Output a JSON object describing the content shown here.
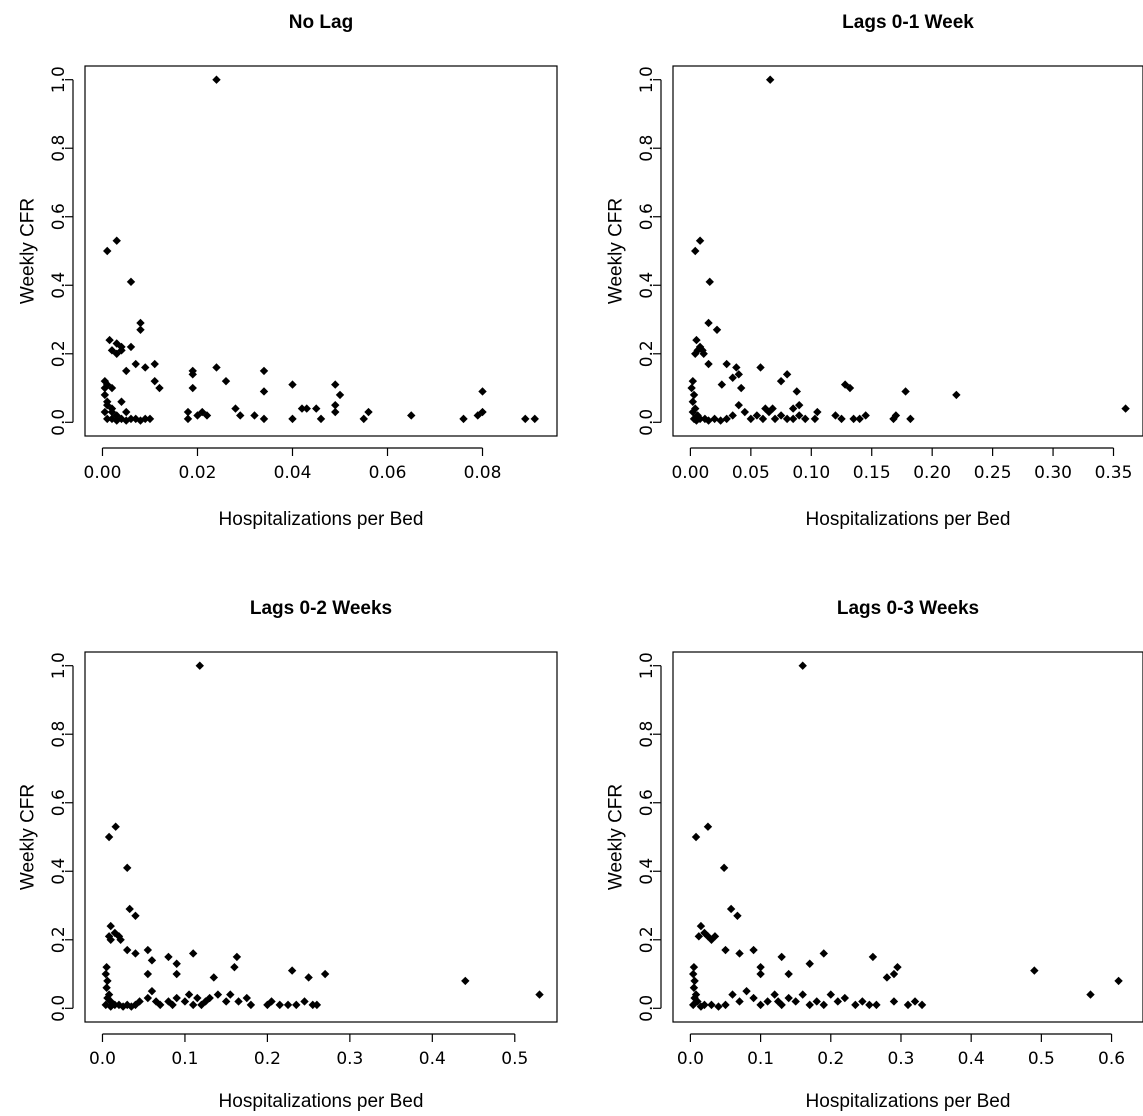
{
  "chart_data": [
    {
      "type": "scatter",
      "title": "No Lag",
      "xlabel": "Hospitalizations per Bed",
      "ylabel": "Weekly CFR",
      "xlim": [
        0,
        0.092
      ],
      "ylim": [
        0,
        1.0
      ],
      "xticks": [
        "0.00",
        "0.02",
        "0.04",
        "0.06",
        "0.08"
      ],
      "xtick_values": [
        0,
        0.02,
        0.04,
        0.06,
        0.08
      ],
      "yticks": [
        "0.0",
        "0.2",
        "0.4",
        "0.6",
        "0.8",
        "1.0"
      ],
      "ytick_values": [
        0,
        0.2,
        0.4,
        0.6,
        0.8,
        1.0
      ],
      "grid": false,
      "points": [
        [
          0.024,
          1.0
        ],
        [
          0.001,
          0.5
        ],
        [
          0.003,
          0.53
        ],
        [
          0.006,
          0.41
        ],
        [
          0.008,
          0.27
        ],
        [
          0.008,
          0.29
        ],
        [
          0.0015,
          0.24
        ],
        [
          0.003,
          0.23
        ],
        [
          0.004,
          0.22
        ],
        [
          0.002,
          0.21
        ],
        [
          0.003,
          0.2
        ],
        [
          0.004,
          0.21
        ],
        [
          0.006,
          0.22
        ],
        [
          0.007,
          0.17
        ],
        [
          0.009,
          0.16
        ],
        [
          0.011,
          0.17
        ],
        [
          0.005,
          0.15
        ],
        [
          0.011,
          0.12
        ],
        [
          0.012,
          0.1
        ],
        [
          0.0005,
          0.12
        ],
        [
          0.001,
          0.11
        ],
        [
          0.0005,
          0.1
        ],
        [
          0.002,
          0.1
        ],
        [
          0.0005,
          0.08
        ],
        [
          0.001,
          0.06
        ],
        [
          0.001,
          0.05
        ],
        [
          0.002,
          0.04
        ],
        [
          0.0005,
          0.03
        ],
        [
          0.002,
          0.03
        ],
        [
          0.003,
          0.02
        ],
        [
          0.001,
          0.01
        ],
        [
          0.002,
          0.01
        ],
        [
          0.003,
          0.005
        ],
        [
          0.004,
          0.01
        ],
        [
          0.005,
          0.005
        ],
        [
          0.006,
          0.01
        ],
        [
          0.007,
          0.01
        ],
        [
          0.008,
          0.005
        ],
        [
          0.009,
          0.01
        ],
        [
          0.01,
          0.01
        ],
        [
          0.004,
          0.06
        ],
        [
          0.005,
          0.03
        ],
        [
          0.019,
          0.14
        ],
        [
          0.019,
          0.15
        ],
        [
          0.019,
          0.1
        ],
        [
          0.018,
          0.03
        ],
        [
          0.018,
          0.01
        ],
        [
          0.02,
          0.02
        ],
        [
          0.021,
          0.03
        ],
        [
          0.022,
          0.02
        ],
        [
          0.024,
          0.16
        ],
        [
          0.026,
          0.12
        ],
        [
          0.028,
          0.04
        ],
        [
          0.029,
          0.02
        ],
        [
          0.032,
          0.02
        ],
        [
          0.034,
          0.15
        ],
        [
          0.034,
          0.09
        ],
        [
          0.034,
          0.01
        ],
        [
          0.04,
          0.11
        ],
        [
          0.04,
          0.01
        ],
        [
          0.042,
          0.04
        ],
        [
          0.043,
          0.04
        ],
        [
          0.045,
          0.04
        ],
        [
          0.046,
          0.01
        ],
        [
          0.049,
          0.11
        ],
        [
          0.049,
          0.05
        ],
        [
          0.05,
          0.08
        ],
        [
          0.049,
          0.03
        ],
        [
          0.055,
          0.01
        ],
        [
          0.056,
          0.03
        ],
        [
          0.065,
          0.02
        ],
        [
          0.076,
          0.01
        ],
        [
          0.08,
          0.09
        ],
        [
          0.08,
          0.03
        ],
        [
          0.079,
          0.02
        ],
        [
          0.089,
          0.01
        ],
        [
          0.091,
          0.01
        ]
      ]
    },
    {
      "type": "scatter",
      "title": "Lags 0-1 Week",
      "xlabel": "Hospitalizations per Bed",
      "ylabel": "Weekly CFR",
      "xlim": [
        0,
        0.36
      ],
      "ylim": [
        0,
        1.0
      ],
      "xticks": [
        "0.00",
        "0.05",
        "0.10",
        "0.15",
        "0.20",
        "0.25",
        "0.30",
        "0.35"
      ],
      "xtick_values": [
        0,
        0.05,
        0.1,
        0.15,
        0.2,
        0.25,
        0.3,
        0.35
      ],
      "yticks": [
        "0.0",
        "0.2",
        "0.4",
        "0.6",
        "0.8",
        "1.0"
      ],
      "ytick_values": [
        0,
        0.2,
        0.4,
        0.6,
        0.8,
        1.0
      ],
      "grid": false,
      "points": [
        [
          0.066,
          1.0
        ],
        [
          0.004,
          0.5
        ],
        [
          0.008,
          0.53
        ],
        [
          0.016,
          0.41
        ],
        [
          0.015,
          0.29
        ],
        [
          0.022,
          0.27
        ],
        [
          0.005,
          0.24
        ],
        [
          0.008,
          0.22
        ],
        [
          0.01,
          0.21
        ],
        [
          0.006,
          0.21
        ],
        [
          0.004,
          0.2
        ],
        [
          0.011,
          0.2
        ],
        [
          0.015,
          0.17
        ],
        [
          0.026,
          0.11
        ],
        [
          0.03,
          0.17
        ],
        [
          0.035,
          0.13
        ],
        [
          0.038,
          0.16
        ],
        [
          0.04,
          0.14
        ],
        [
          0.042,
          0.1
        ],
        [
          0.058,
          0.16
        ],
        [
          0.062,
          0.04
        ],
        [
          0.075,
          0.12
        ],
        [
          0.08,
          0.14
        ],
        [
          0.088,
          0.09
        ],
        [
          0.085,
          0.04
        ],
        [
          0.09,
          0.05
        ],
        [
          0.002,
          0.12
        ],
        [
          0.001,
          0.1
        ],
        [
          0.003,
          0.08
        ],
        [
          0.002,
          0.06
        ],
        [
          0.004,
          0.04
        ],
        [
          0.002,
          0.03
        ],
        [
          0.006,
          0.02
        ],
        [
          0.003,
          0.01
        ],
        [
          0.005,
          0.005
        ],
        [
          0.008,
          0.01
        ],
        [
          0.012,
          0.01
        ],
        [
          0.015,
          0.005
        ],
        [
          0.02,
          0.01
        ],
        [
          0.025,
          0.005
        ],
        [
          0.03,
          0.01
        ],
        [
          0.035,
          0.02
        ],
        [
          0.04,
          0.05
        ],
        [
          0.045,
          0.03
        ],
        [
          0.05,
          0.01
        ],
        [
          0.055,
          0.02
        ],
        [
          0.06,
          0.01
        ],
        [
          0.065,
          0.03
        ],
        [
          0.068,
          0.04
        ],
        [
          0.07,
          0.01
        ],
        [
          0.075,
          0.02
        ],
        [
          0.08,
          0.01
        ],
        [
          0.085,
          0.01
        ],
        [
          0.09,
          0.02
        ],
        [
          0.095,
          0.01
        ],
        [
          0.105,
          0.03
        ],
        [
          0.103,
          0.01
        ],
        [
          0.12,
          0.02
        ],
        [
          0.125,
          0.01
        ],
        [
          0.128,
          0.11
        ],
        [
          0.132,
          0.1
        ],
        [
          0.135,
          0.01
        ],
        [
          0.14,
          0.01
        ],
        [
          0.145,
          0.02
        ],
        [
          0.168,
          0.01
        ],
        [
          0.17,
          0.02
        ],
        [
          0.178,
          0.09
        ],
        [
          0.182,
          0.01
        ],
        [
          0.22,
          0.08
        ],
        [
          0.36,
          0.04
        ]
      ]
    },
    {
      "type": "scatter",
      "title": "Lags 0-2 Weeks",
      "xlabel": "Hospitalizations per Bed",
      "ylabel": "Weekly CFR",
      "xlim": [
        0,
        0.53
      ],
      "ylim": [
        0,
        1.0
      ],
      "xticks": [
        "0.0",
        "0.1",
        "0.2",
        "0.3",
        "0.4",
        "0.5"
      ],
      "xtick_values": [
        0,
        0.1,
        0.2,
        0.3,
        0.4,
        0.5
      ],
      "yticks": [
        "0.0",
        "0.2",
        "0.4",
        "0.6",
        "0.8",
        "1.0"
      ],
      "ytick_values": [
        0,
        0.2,
        0.4,
        0.6,
        0.8,
        1.0
      ],
      "grid": false,
      "points": [
        [
          0.118,
          1.0
        ],
        [
          0.008,
          0.5
        ],
        [
          0.016,
          0.53
        ],
        [
          0.03,
          0.41
        ],
        [
          0.033,
          0.29
        ],
        [
          0.04,
          0.27
        ],
        [
          0.01,
          0.24
        ],
        [
          0.015,
          0.22
        ],
        [
          0.02,
          0.21
        ],
        [
          0.008,
          0.21
        ],
        [
          0.01,
          0.2
        ],
        [
          0.022,
          0.2
        ],
        [
          0.03,
          0.17
        ],
        [
          0.04,
          0.16
        ],
        [
          0.055,
          0.17
        ],
        [
          0.055,
          0.1
        ],
        [
          0.06,
          0.14
        ],
        [
          0.08,
          0.15
        ],
        [
          0.09,
          0.13
        ],
        [
          0.11,
          0.16
        ],
        [
          0.09,
          0.1
        ],
        [
          0.135,
          0.09
        ],
        [
          0.16,
          0.12
        ],
        [
          0.163,
          0.15
        ],
        [
          0.005,
          0.12
        ],
        [
          0.004,
          0.1
        ],
        [
          0.006,
          0.08
        ],
        [
          0.005,
          0.06
        ],
        [
          0.008,
          0.04
        ],
        [
          0.006,
          0.03
        ],
        [
          0.01,
          0.02
        ],
        [
          0.004,
          0.01
        ],
        [
          0.01,
          0.005
        ],
        [
          0.015,
          0.01
        ],
        [
          0.02,
          0.01
        ],
        [
          0.025,
          0.005
        ],
        [
          0.03,
          0.01
        ],
        [
          0.035,
          0.005
        ],
        [
          0.04,
          0.01
        ],
        [
          0.045,
          0.02
        ],
        [
          0.055,
          0.03
        ],
        [
          0.06,
          0.05
        ],
        [
          0.065,
          0.02
        ],
        [
          0.07,
          0.01
        ],
        [
          0.08,
          0.02
        ],
        [
          0.085,
          0.01
        ],
        [
          0.09,
          0.03
        ],
        [
          0.1,
          0.02
        ],
        [
          0.105,
          0.04
        ],
        [
          0.11,
          0.01
        ],
        [
          0.115,
          0.03
        ],
        [
          0.12,
          0.01
        ],
        [
          0.125,
          0.02
        ],
        [
          0.13,
          0.03
        ],
        [
          0.14,
          0.04
        ],
        [
          0.15,
          0.02
        ],
        [
          0.155,
          0.04
        ],
        [
          0.165,
          0.02
        ],
        [
          0.175,
          0.03
        ],
        [
          0.18,
          0.01
        ],
        [
          0.2,
          0.01
        ],
        [
          0.205,
          0.02
        ],
        [
          0.215,
          0.01
        ],
        [
          0.225,
          0.01
        ],
        [
          0.23,
          0.11
        ],
        [
          0.235,
          0.01
        ],
        [
          0.245,
          0.02
        ],
        [
          0.25,
          0.09
        ],
        [
          0.255,
          0.01
        ],
        [
          0.26,
          0.01
        ],
        [
          0.27,
          0.1
        ],
        [
          0.44,
          0.08
        ],
        [
          0.53,
          0.04
        ]
      ]
    },
    {
      "type": "scatter",
      "title": "Lags 0-3 Weeks",
      "xlabel": "Hospitalizations per Bed",
      "ylabel": "Weekly CFR",
      "xlim": [
        0,
        0.62
      ],
      "ylim": [
        0,
        1.0
      ],
      "xticks": [
        "0.0",
        "0.1",
        "0.2",
        "0.3",
        "0.4",
        "0.5",
        "0.6"
      ],
      "xtick_values": [
        0,
        0.1,
        0.2,
        0.3,
        0.4,
        0.5,
        0.6
      ],
      "yticks": [
        "0.0",
        "0.2",
        "0.4",
        "0.6",
        "0.8",
        "1.0"
      ],
      "ytick_values": [
        0,
        0.2,
        0.4,
        0.6,
        0.8,
        1.0
      ],
      "grid": false,
      "points": [
        [
          0.16,
          1.0
        ],
        [
          0.008,
          0.5
        ],
        [
          0.025,
          0.53
        ],
        [
          0.048,
          0.41
        ],
        [
          0.058,
          0.29
        ],
        [
          0.067,
          0.27
        ],
        [
          0.015,
          0.24
        ],
        [
          0.02,
          0.22
        ],
        [
          0.025,
          0.21
        ],
        [
          0.012,
          0.21
        ],
        [
          0.03,
          0.2
        ],
        [
          0.035,
          0.21
        ],
        [
          0.05,
          0.17
        ],
        [
          0.07,
          0.16
        ],
        [
          0.09,
          0.17
        ],
        [
          0.1,
          0.12
        ],
        [
          0.1,
          0.1
        ],
        [
          0.13,
          0.15
        ],
        [
          0.14,
          0.1
        ],
        [
          0.17,
          0.13
        ],
        [
          0.19,
          0.16
        ],
        [
          0.26,
          0.15
        ],
        [
          0.29,
          0.1
        ],
        [
          0.295,
          0.12
        ],
        [
          0.28,
          0.09
        ],
        [
          0.005,
          0.12
        ],
        [
          0.004,
          0.1
        ],
        [
          0.006,
          0.08
        ],
        [
          0.005,
          0.06
        ],
        [
          0.008,
          0.04
        ],
        [
          0.006,
          0.03
        ],
        [
          0.01,
          0.02
        ],
        [
          0.004,
          0.01
        ],
        [
          0.015,
          0.005
        ],
        [
          0.02,
          0.01
        ],
        [
          0.03,
          0.01
        ],
        [
          0.04,
          0.005
        ],
        [
          0.05,
          0.01
        ],
        [
          0.06,
          0.04
        ],
        [
          0.07,
          0.02
        ],
        [
          0.08,
          0.05
        ],
        [
          0.09,
          0.03
        ],
        [
          0.1,
          0.01
        ],
        [
          0.11,
          0.02
        ],
        [
          0.12,
          0.04
        ],
        [
          0.125,
          0.02
        ],
        [
          0.13,
          0.01
        ],
        [
          0.14,
          0.03
        ],
        [
          0.15,
          0.02
        ],
        [
          0.16,
          0.04
        ],
        [
          0.17,
          0.01
        ],
        [
          0.18,
          0.02
        ],
        [
          0.19,
          0.01
        ],
        [
          0.2,
          0.04
        ],
        [
          0.21,
          0.02
        ],
        [
          0.22,
          0.03
        ],
        [
          0.235,
          0.01
        ],
        [
          0.245,
          0.02
        ],
        [
          0.255,
          0.01
        ],
        [
          0.265,
          0.01
        ],
        [
          0.29,
          0.02
        ],
        [
          0.31,
          0.01
        ],
        [
          0.32,
          0.02
        ],
        [
          0.33,
          0.01
        ],
        [
          0.49,
          0.11
        ],
        [
          0.57,
          0.04
        ],
        [
          0.61,
          0.08
        ]
      ]
    }
  ]
}
